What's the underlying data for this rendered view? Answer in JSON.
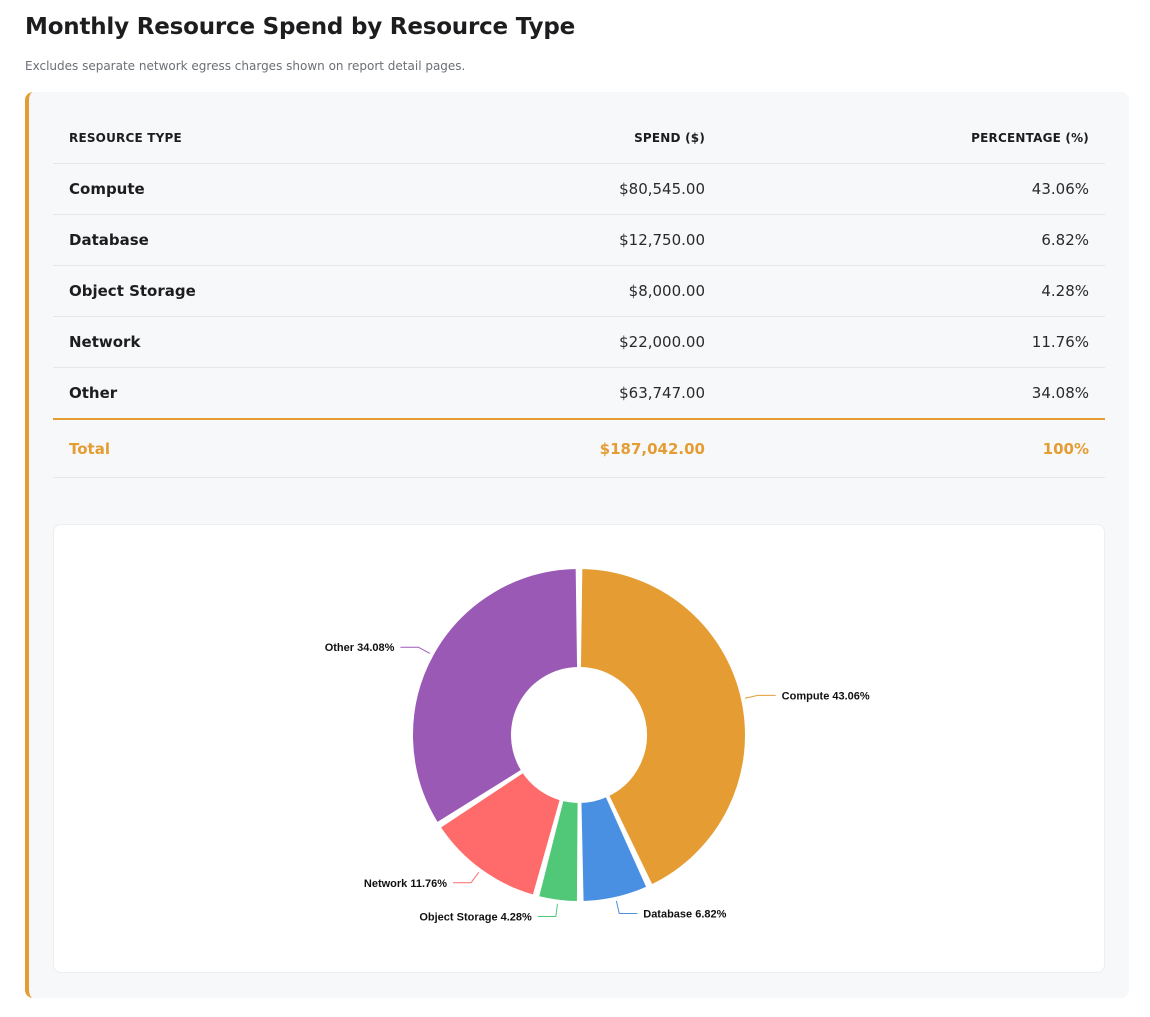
{
  "title": "Monthly Resource Spend by Resource Type",
  "subtitle": "Excludes separate network egress charges shown on report detail pages.",
  "table": {
    "headers": [
      "RESOURCE TYPE",
      "SPEND ($)",
      "PERCENTAGE (%)"
    ],
    "rows": [
      {
        "name": "Compute",
        "spend": "$80,545.00",
        "pct": "43.06%"
      },
      {
        "name": "Database",
        "spend": "$12,750.00",
        "pct": "6.82%"
      },
      {
        "name": "Object Storage",
        "spend": "$8,000.00",
        "pct": "4.28%"
      },
      {
        "name": "Network",
        "spend": "$22,000.00",
        "pct": "11.76%"
      },
      {
        "name": "Other",
        "spend": "$63,747.00",
        "pct": "34.08%"
      }
    ],
    "total": {
      "name": "Total",
      "spend": "$187,042.00",
      "pct": "100%"
    }
  },
  "colors": {
    "accent": "#e59d33"
  },
  "chart_data": {
    "type": "pie",
    "donut": true,
    "categories": [
      "Compute",
      "Database",
      "Object Storage",
      "Network",
      "Other"
    ],
    "values": [
      43.06,
      6.82,
      4.28,
      11.76,
      34.08
    ],
    "labels": [
      "Compute 43.06%",
      "Database 6.82%",
      "Object Storage 4.28%",
      "Network 11.76%",
      "Other 34.08%"
    ],
    "colors": [
      "#e59d33",
      "#4a90e2",
      "#50c878",
      "#ff6b6b",
      "#9b59b6"
    ]
  }
}
